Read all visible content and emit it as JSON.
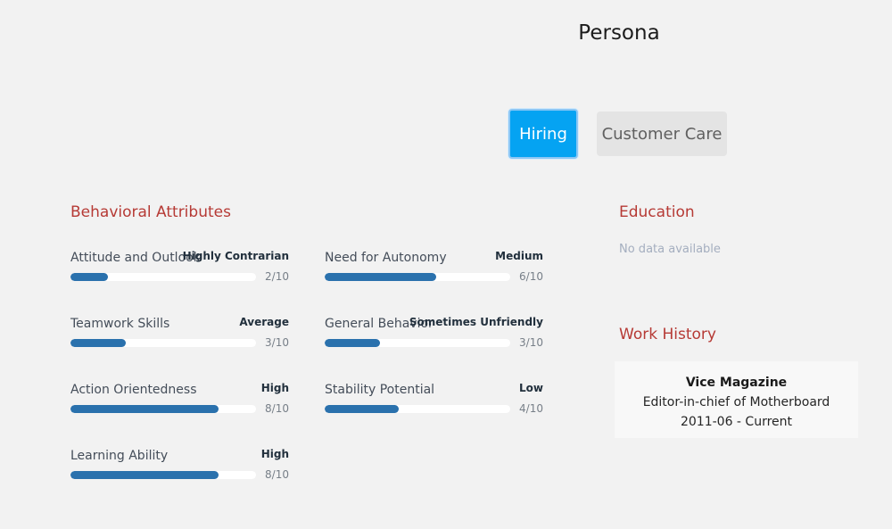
{
  "page_title": "Persona",
  "tabs": [
    {
      "label": "Hiring",
      "active": true
    },
    {
      "label": "Customer Care",
      "active": false
    }
  ],
  "colors": {
    "accent_tab": "#05a3f2",
    "section_title": "#b63a35",
    "bar_fill": "#2a71ad",
    "bar_track": "#ffffff"
  },
  "behavioral": {
    "title": "Behavioral Attributes",
    "attributes": [
      {
        "label": "Attitude and Outlook",
        "rating": "Highly Contrarian",
        "score": "2/10",
        "value": 2
      },
      {
        "label": "Need for Autonomy",
        "rating": "Medium",
        "score": "6/10",
        "value": 6
      },
      {
        "label": "Teamwork Skills",
        "rating": "Average",
        "score": "3/10",
        "value": 3
      },
      {
        "label": "General Behavior",
        "rating": "Sometimes Unfriendly",
        "score": "3/10",
        "value": 3
      },
      {
        "label": "Action Orientedness",
        "rating": "High",
        "score": "8/10",
        "value": 8
      },
      {
        "label": "Stability Potential",
        "rating": "Low",
        "score": "4/10",
        "value": 4
      },
      {
        "label": "Learning Ability",
        "rating": "High",
        "score": "8/10",
        "value": 8
      }
    ]
  },
  "education": {
    "title": "Education",
    "empty_text": "No data available"
  },
  "work_history": {
    "title": "Work History",
    "entries": [
      {
        "company": "Vice Magazine",
        "role": "Editor-in-chief of Motherboard",
        "period": "2011-06 - Current"
      }
    ]
  }
}
